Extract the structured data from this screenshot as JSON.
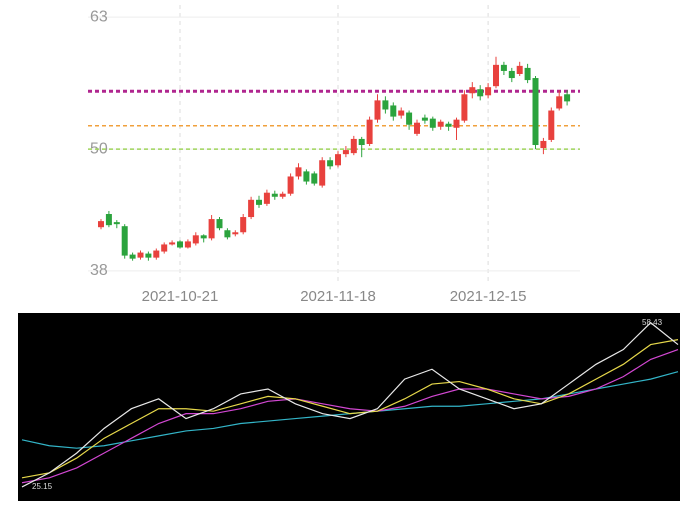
{
  "chart_data": [
    {
      "type": "candlestick",
      "categories": [
        null,
        null,
        null,
        null,
        null,
        null,
        null,
        null,
        null,
        null,
        "2021-10-21",
        null,
        null,
        null,
        null,
        null,
        null,
        null,
        null,
        null,
        null,
        null,
        null,
        null,
        null,
        null,
        null,
        null,
        null,
        null,
        "2021-11-18",
        null,
        null,
        null,
        null,
        null,
        null,
        null,
        null,
        null,
        null,
        null,
        null,
        null,
        null,
        null,
        null,
        null,
        null,
        "2021-12-15",
        null,
        null,
        null,
        null,
        null,
        null,
        null,
        null,
        null,
        null
      ],
      "open": [
        42.3,
        43.6,
        42.8,
        42.4,
        39.6,
        39.3,
        39.7,
        39.3,
        39.9,
        40.6,
        40.9,
        40.3,
        40.7,
        41.5,
        41.2,
        43.1,
        42.0,
        41.6,
        41.8,
        43.3,
        45.0,
        44.6,
        45.6,
        45.3,
        45.6,
        47.3,
        47.8,
        47.6,
        46.4,
        48.9,
        48.4,
        49.5,
        49.6,
        51.0,
        50.5,
        52.9,
        54.8,
        54.3,
        53.3,
        53.6,
        51.5,
        53.1,
        53.0,
        52.2,
        52.5,
        52.1,
        52.8,
        55.5,
        55.9,
        55.3,
        56.2,
        58.3,
        57.7,
        57.4,
        58.0,
        57.0,
        50.1,
        50.9,
        54.0,
        55.4
      ],
      "high": [
        43.1,
        43.9,
        43.0,
        42.6,
        39.8,
        40.0,
        39.9,
        40.2,
        40.8,
        41.0,
        41.0,
        41.1,
        41.8,
        41.6,
        43.5,
        43.3,
        42.2,
        42.0,
        43.6,
        45.3,
        45.4,
        46.0,
        45.9,
        45.8,
        47.6,
        48.6,
        48.0,
        47.8,
        49.2,
        49.2,
        49.8,
        50.3,
        51.3,
        51.2,
        53.2,
        55.4,
        55.2,
        54.6,
        54.1,
        53.8,
        52.9,
        53.4,
        53.2,
        52.9,
        52.7,
        53.1,
        55.8,
        56.6,
        56.3,
        56.5,
        59.1,
        58.6,
        58.0,
        58.6,
        58.4,
        57.2,
        51.1,
        54.1,
        55.8,
        55.8
      ],
      "low": [
        42.1,
        42.3,
        42.2,
        39.2,
        39.0,
        39.1,
        39.0,
        39.1,
        39.7,
        40.5,
        40.2,
        40.2,
        40.5,
        40.8,
        41.0,
        42.0,
        41.1,
        41.4,
        41.6,
        43.1,
        44.2,
        44.4,
        45.0,
        45.1,
        45.4,
        47.0,
        46.5,
        46.4,
        46.2,
        48.0,
        48.2,
        49.2,
        49.4,
        49.2,
        50.3,
        52.6,
        53.5,
        52.8,
        53.0,
        51.9,
        51.3,
        52.5,
        51.8,
        51.9,
        51.8,
        50.9,
        52.6,
        55.0,
        54.8,
        55.0,
        56.0,
        57.3,
        56.6,
        57.2,
        56.5,
        50.0,
        49.5,
        50.7,
        53.8,
        54.3
      ],
      "close": [
        42.9,
        42.5,
        42.6,
        39.5,
        39.2,
        39.8,
        39.3,
        40.0,
        40.6,
        40.8,
        40.3,
        40.9,
        41.5,
        41.2,
        43.1,
        42.2,
        41.3,
        41.8,
        43.3,
        45.0,
        44.5,
        45.7,
        45.3,
        45.6,
        47.3,
        48.2,
        46.8,
        46.6,
        48.9,
        48.3,
        49.5,
        49.9,
        51.0,
        50.4,
        52.9,
        54.8,
        53.9,
        53.2,
        53.8,
        52.4,
        52.6,
        52.8,
        52.1,
        52.7,
        52.2,
        52.9,
        55.4,
        56.1,
        55.2,
        56.1,
        58.3,
        57.7,
        57.0,
        58.2,
        56.8,
        50.4,
        50.8,
        53.8,
        55.2,
        54.7
      ],
      "up_color": "#e8413d",
      "down_color": "#2ba33d",
      "ylim": [
        36.8,
        64.2
      ],
      "yticks": [
        38,
        50,
        63
      ],
      "hlines": [
        {
          "value": 55.7,
          "color": "#b0268f"
        },
        {
          "value": 52.3,
          "color": "#f0a03c"
        },
        {
          "value": 50,
          "color": "#9ed45a"
        }
      ],
      "grid": true
    },
    {
      "type": "line",
      "ylim": [
        22.5,
        60.4
      ],
      "series": [
        {
          "color": "#e8e8e8",
          "values": [
            25.15,
            28,
            32,
            37,
            41,
            43,
            39,
            41,
            44,
            45,
            42,
            40,
            39,
            41,
            47,
            49,
            45,
            43,
            41,
            42,
            46,
            50,
            53,
            58.43,
            54
          ]
        },
        {
          "color": "#e6d84a",
          "values": [
            27,
            28,
            31,
            35,
            38,
            41,
            41,
            40.5,
            42,
            43.5,
            43,
            41.5,
            40,
            40.5,
            43,
            46,
            46.5,
            45,
            43,
            42,
            44,
            47,
            50,
            54,
            55
          ]
        },
        {
          "color": "#d247d2",
          "values": [
            26,
            27,
            29,
            32,
            35,
            38,
            40,
            40,
            41,
            42.5,
            43,
            42,
            41,
            40.5,
            41.5,
            43.5,
            45,
            45,
            44,
            43,
            43.5,
            45,
            47.5,
            51,
            53
          ]
        },
        {
          "color": "#33b5c8",
          "values": [
            34.7,
            33.5,
            33,
            33.5,
            34.5,
            35.5,
            36.5,
            37,
            38,
            38.5,
            39,
            39.5,
            40,
            40.5,
            41,
            41.5,
            41.5,
            42,
            42.5,
            43,
            44,
            45,
            46,
            47,
            48.5
          ]
        }
      ],
      "annotations": [
        "25.15",
        "58.43"
      ]
    }
  ]
}
